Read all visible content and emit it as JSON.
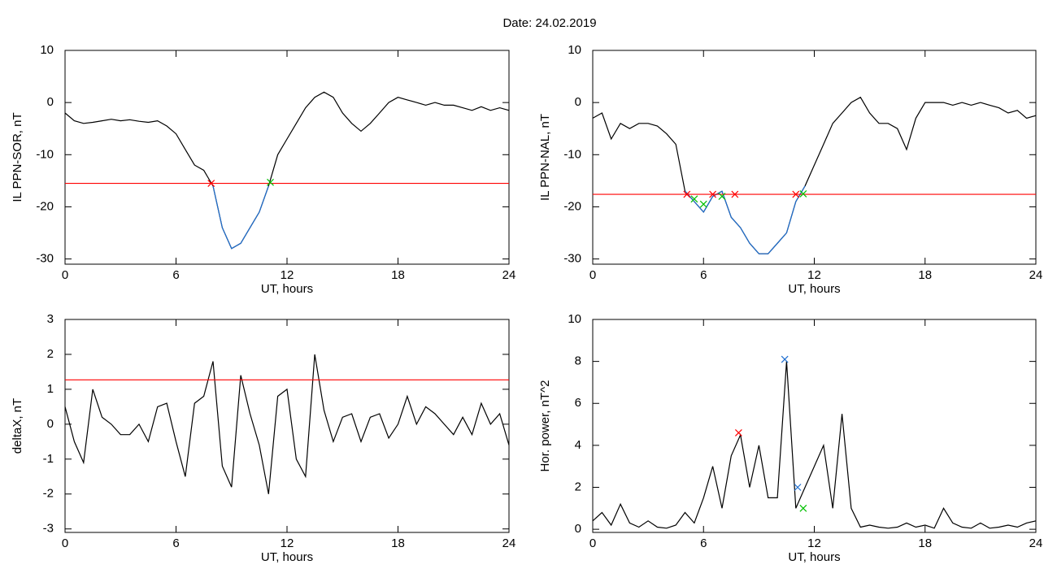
{
  "title": "Date:  24.02.2019",
  "chart_data": [
    {
      "type": "line",
      "ylabel": "IL PPN-SOR, nT",
      "xlabel": "UT, hours",
      "x": [
        0,
        0.5,
        1,
        1.5,
        2,
        2.5,
        3,
        3.5,
        4,
        4.5,
        5,
        5.5,
        6,
        6.5,
        7,
        7.5,
        8,
        8.5,
        9,
        9.5,
        10,
        10.5,
        11,
        11.5,
        12,
        12.5,
        13,
        13.5,
        14,
        14.5,
        15,
        15.5,
        16,
        16.5,
        17,
        17.5,
        18,
        18.5,
        19,
        19.5,
        20,
        20.5,
        21,
        21.5,
        22,
        22.5,
        23,
        23.5,
        24
      ],
      "series": [
        {
          "color": "#000000",
          "values": [
            -2,
            -3.5,
            -4,
            -3.8,
            -3.5,
            -3.2,
            -3.5,
            -3.3,
            -3.6,
            -3.8,
            -3.5,
            -4.5,
            -6,
            -9,
            -12,
            -13,
            -16,
            -24,
            -28,
            -27,
            -24,
            -21,
            -16,
            -10,
            -7,
            -4,
            -1,
            1,
            2,
            1,
            -2,
            -4,
            -5.5,
            -4,
            -2,
            0,
            1,
            0.5,
            0,
            -0.5,
            0,
            -0.5,
            -0.5,
            -1,
            -1.5,
            -0.8,
            -1.5,
            -1,
            -1.5
          ]
        },
        {
          "color": "#1f6fd0",
          "values": [
            null,
            null,
            null,
            null,
            null,
            null,
            null,
            null,
            null,
            null,
            null,
            null,
            null,
            null,
            null,
            null,
            -16,
            -24,
            -28,
            -27,
            -24,
            -21,
            -16,
            null,
            null,
            null,
            null,
            null,
            null,
            null,
            null,
            null,
            null,
            null,
            null,
            null,
            null,
            null,
            null,
            null,
            null,
            null,
            null,
            null,
            null,
            null,
            null,
            null,
            null
          ]
        }
      ],
      "threshold": {
        "value": -15.5,
        "color": "#ff0000"
      },
      "markers": [
        {
          "x": 7.9,
          "y": -15.5,
          "color": "#ff0000"
        },
        {
          "x": 11.1,
          "y": -15.3,
          "color": "#00c000"
        }
      ],
      "xlim": [
        0,
        24
      ],
      "xticks": [
        0,
        6,
        12,
        18,
        24
      ],
      "ylim": [
        -31,
        10
      ],
      "yticks": [
        -30,
        -20,
        -10,
        0,
        10
      ]
    },
    {
      "type": "line",
      "ylabel": "IL PPN-NAL, nT",
      "xlabel": "UT, hours",
      "x": [
        0,
        0.5,
        1,
        1.5,
        2,
        2.5,
        3,
        3.5,
        4,
        4.5,
        5,
        5.5,
        6,
        6.5,
        7,
        7.5,
        8,
        8.5,
        9,
        9.5,
        10,
        10.5,
        11,
        11.5,
        12,
        12.5,
        13,
        13.5,
        14,
        14.5,
        15,
        15.5,
        16,
        16.5,
        17,
        17.5,
        18,
        18.5,
        19,
        19.5,
        20,
        20.5,
        21,
        21.5,
        22,
        22.5,
        23,
        23.5,
        24
      ],
      "series": [
        {
          "color": "#000000",
          "values": [
            -3,
            -2,
            -7,
            -4,
            -5,
            -4,
            -4,
            -4.5,
            -6,
            -8,
            -17,
            -19,
            -21,
            -18,
            -17,
            -22,
            -24,
            -27,
            -29,
            -29,
            -27,
            -25,
            -19,
            -16,
            -12,
            -8,
            -4,
            -2,
            0,
            1,
            -2,
            -4,
            -4,
            -5,
            -9,
            -3,
            0,
            0,
            0,
            -0.5,
            0,
            -0.5,
            0,
            -0.5,
            -1,
            -2,
            -1.5,
            -3,
            -2.5
          ]
        },
        {
          "color": "#1f6fd0",
          "values": [
            null,
            null,
            null,
            null,
            null,
            null,
            null,
            null,
            null,
            null,
            -17,
            -19,
            -21,
            -18,
            -17,
            -22,
            -24,
            -27,
            -29,
            -29,
            -27,
            -25,
            -19,
            -16,
            null,
            null,
            null,
            null,
            null,
            null,
            null,
            null,
            null,
            null,
            null,
            null,
            null,
            null,
            null,
            null,
            null,
            null,
            null,
            null,
            null,
            null,
            null,
            null,
            null
          ]
        }
      ],
      "threshold": {
        "value": -17.6,
        "color": "#ff0000"
      },
      "markers": [
        {
          "x": 5.1,
          "y": -17.6,
          "color": "#ff0000"
        },
        {
          "x": 5.5,
          "y": -18.5,
          "color": "#00c000"
        },
        {
          "x": 6,
          "y": -19.5,
          "color": "#00c000"
        },
        {
          "x": 6.5,
          "y": -17.6,
          "color": "#ff0000"
        },
        {
          "x": 7,
          "y": -18,
          "color": "#00c000"
        },
        {
          "x": 7.7,
          "y": -17.6,
          "color": "#ff0000"
        },
        {
          "x": 11,
          "y": -17.6,
          "color": "#ff0000"
        },
        {
          "x": 11.4,
          "y": -17.5,
          "color": "#00c000"
        }
      ],
      "xlim": [
        0,
        24
      ],
      "xticks": [
        0,
        6,
        12,
        18,
        24
      ],
      "ylim": [
        -31,
        10
      ],
      "yticks": [
        -30,
        -20,
        -10,
        0,
        10
      ]
    },
    {
      "type": "line",
      "ylabel": "deltaX, nT",
      "xlabel": "UT, hours",
      "x": [
        0,
        0.5,
        1,
        1.5,
        2,
        2.5,
        3,
        3.5,
        4,
        4.5,
        5,
        5.5,
        6,
        6.5,
        7,
        7.5,
        8,
        8.5,
        9,
        9.5,
        10,
        10.5,
        11,
        11.5,
        12,
        12.5,
        13,
        13.5,
        14,
        14.5,
        15,
        15.5,
        16,
        16.5,
        17,
        17.5,
        18,
        18.5,
        19,
        19.5,
        20,
        20.5,
        21,
        21.5,
        22,
        22.5,
        23,
        23.5,
        24
      ],
      "series": [
        {
          "color": "#000000",
          "values": [
            0.5,
            -0.5,
            -1.1,
            1,
            0.2,
            0,
            -0.3,
            -0.3,
            0,
            -0.5,
            0.5,
            0.6,
            -0.5,
            -1.5,
            0.6,
            0.8,
            1.8,
            -1.2,
            -1.8,
            1.4,
            0.3,
            -0.6,
            -2,
            0.8,
            1,
            -1,
            -1.5,
            2,
            0.4,
            -0.5,
            0.2,
            0.3,
            -0.5,
            0.2,
            0.3,
            -0.4,
            0,
            0.8,
            0,
            0.5,
            0.3,
            0,
            -0.3,
            0.2,
            -0.3,
            0.6,
            0,
            0.3,
            -0.6
          ]
        }
      ],
      "threshold": {
        "value": 1.27,
        "color": "#ff0000"
      },
      "markers": [],
      "xlim": [
        0,
        24
      ],
      "xticks": [
        0,
        6,
        12,
        18,
        24
      ],
      "ylim": [
        -3.1,
        3
      ],
      "yticks": [
        -3,
        -2,
        -1,
        0,
        1,
        2,
        3
      ]
    },
    {
      "type": "line",
      "ylabel": "Hor. power, nT^2",
      "xlabel": "UT, hours",
      "x": [
        0,
        0.5,
        1,
        1.5,
        2,
        2.5,
        3,
        3.5,
        4,
        4.5,
        5,
        5.5,
        6,
        6.5,
        7,
        7.5,
        8,
        8.5,
        9,
        9.5,
        10,
        10.5,
        11,
        11.5,
        12,
        12.5,
        13,
        13.5,
        14,
        14.5,
        15,
        15.5,
        16,
        16.5,
        17,
        17.5,
        18,
        18.5,
        19,
        19.5,
        20,
        20.5,
        21,
        21.5,
        22,
        22.5,
        23,
        23.5,
        24
      ],
      "series": [
        {
          "color": "#000000",
          "values": [
            0.4,
            0.8,
            0.2,
            1.2,
            0.3,
            0.1,
            0.4,
            0.1,
            0.05,
            0.2,
            0.8,
            0.3,
            1.5,
            3,
            1,
            3.5,
            4.5,
            2,
            4,
            1.5,
            1.5,
            8,
            1,
            2,
            3,
            4,
            1,
            5.5,
            1,
            0.1,
            0.2,
            0.1,
            0.05,
            0.1,
            0.3,
            0.1,
            0.2,
            0.05,
            1,
            0.3,
            0.1,
            0.05,
            0.3,
            0.05,
            0.1,
            0.2,
            0.1,
            0.3,
            0.4
          ]
        }
      ],
      "markers": [
        {
          "x": 7.9,
          "y": 4.6,
          "color": "#ff0000"
        },
        {
          "x": 10.4,
          "y": 8.1,
          "color": "#1f6fd0"
        },
        {
          "x": 11.1,
          "y": 2,
          "color": "#1f6fd0"
        },
        {
          "x": 11.4,
          "y": 1,
          "color": "#00c000"
        }
      ],
      "xlim": [
        0,
        24
      ],
      "xticks": [
        0,
        6,
        12,
        18,
        24
      ],
      "ylim": [
        -0.15,
        10
      ],
      "yticks": [
        0,
        2,
        4,
        6,
        8,
        10
      ]
    }
  ]
}
